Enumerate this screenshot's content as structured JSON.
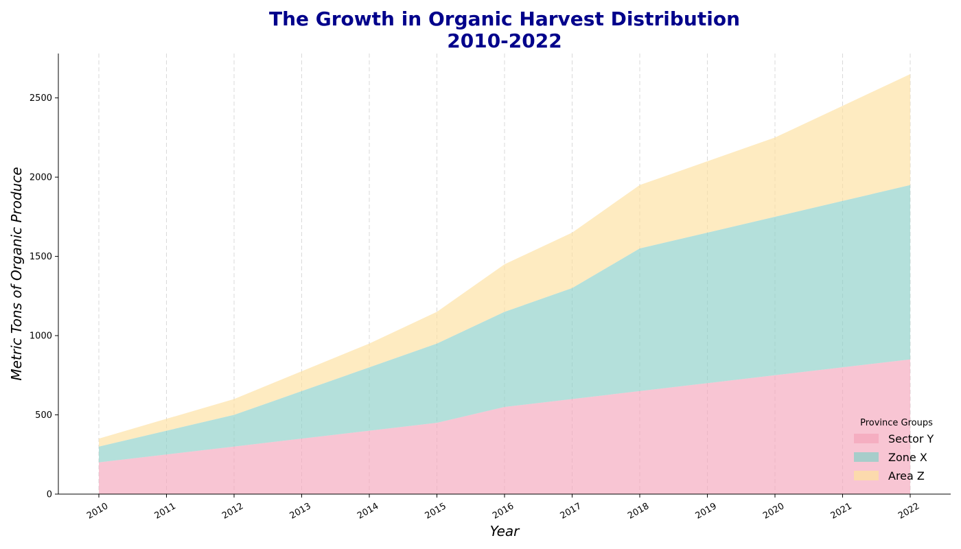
{
  "chart_data": {
    "type": "area",
    "stacked": true,
    "title_lines": [
      "The Growth in Organic Harvest Distribution",
      "2010-2022"
    ],
    "xlabel": "Year",
    "ylabel": "Metric Tons of Organic Produce",
    "x": [
      "2010",
      "2011",
      "2012",
      "2013",
      "2014",
      "2015",
      "2016",
      "2017",
      "2018",
      "2019",
      "2020",
      "2021",
      "2022"
    ],
    "ylim": [
      0,
      2780
    ],
    "yticks": [
      0,
      500,
      1000,
      1500,
      2000,
      2500
    ],
    "grid": "vertical dashed",
    "legend": {
      "title": "Province Groups",
      "position": "lower-right"
    },
    "series": [
      {
        "name": "Sector Y",
        "color": "#f4a6bb",
        "values": [
          200,
          250,
          300,
          350,
          400,
          450,
          550,
          600,
          650,
          700,
          750,
          800,
          850
        ]
      },
      {
        "name": "Zone X",
        "color": "#8ccfc7",
        "values": [
          100,
          150,
          200,
          300,
          400,
          500,
          600,
          700,
          900,
          950,
          1000,
          1050,
          1100
        ]
      },
      {
        "name": "Area Z",
        "color": "#fde0a0",
        "values": [
          50,
          75,
          100,
          125,
          150,
          200,
          300,
          350,
          400,
          450,
          500,
          600,
          700
        ]
      }
    ]
  }
}
